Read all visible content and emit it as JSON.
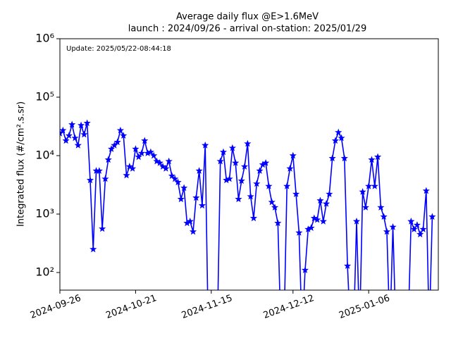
{
  "chart_data": {
    "type": "line",
    "title": "Average daily flux @E>1.6MeV",
    "subtitle": "launch : 2024/09/26 - arrival on-station: 2025/01/29",
    "annotation": "Update: 2025/05/22-08:44:18",
    "y_label": "Integrated flux (#/cm².s.sr)",
    "log_y": true,
    "x": [
      "2024-09-26",
      "2024-09-27",
      "2024-09-28",
      "2024-09-29",
      "2024-09-30",
      "2024-10-01",
      "2024-10-02",
      "2024-10-03",
      "2024-10-04",
      "2024-10-05",
      "2024-10-06",
      "2024-10-07",
      "2024-10-08",
      "2024-10-09",
      "2024-10-10",
      "2024-10-11",
      "2024-10-12",
      "2024-10-13",
      "2024-10-14",
      "2024-10-15",
      "2024-10-16",
      "2024-10-17",
      "2024-10-18",
      "2024-10-19",
      "2024-10-20",
      "2024-10-21",
      "2024-10-22",
      "2024-10-23",
      "2024-10-24",
      "2024-10-25",
      "2024-10-26",
      "2024-10-27",
      "2024-10-28",
      "2024-10-29",
      "2024-10-30",
      "2024-10-31",
      "2024-11-01",
      "2024-11-02",
      "2024-11-03",
      "2024-11-04",
      "2024-11-05",
      "2024-11-06",
      "2024-11-07",
      "2024-11-08",
      "2024-11-09",
      "2024-11-10",
      "2024-11-11",
      "2024-11-12",
      "2024-11-13",
      "2024-11-14",
      "2024-11-15",
      "2024-11-16",
      "2024-11-17",
      "2024-11-18",
      "2024-11-19",
      "2024-11-20",
      "2024-11-21",
      "2024-11-22",
      "2024-11-23",
      "2024-11-24",
      "2024-11-25",
      "2024-11-26",
      "2024-11-27",
      "2024-11-28",
      "2024-11-29",
      "2024-11-30",
      "2024-12-01",
      "2024-12-02",
      "2024-12-03",
      "2024-12-04",
      "2024-12-05",
      "2024-12-06",
      "2024-12-07",
      "2024-12-08",
      "2024-12-09",
      "2024-12-10",
      "2024-12-11",
      "2024-12-12",
      "2024-12-13",
      "2024-12-14",
      "2024-12-15",
      "2024-12-16",
      "2024-12-17",
      "2024-12-18",
      "2024-12-19",
      "2024-12-20",
      "2024-12-21",
      "2024-12-22",
      "2024-12-23",
      "2024-12-24",
      "2024-12-25",
      "2024-12-26",
      "2024-12-27",
      "2024-12-28",
      "2024-12-29",
      "2024-12-30",
      "2024-12-31",
      "2025-01-01",
      "2025-01-02",
      "2025-01-03",
      "2025-01-04",
      "2025-01-05",
      "2025-01-06",
      "2025-01-07",
      "2025-01-08",
      "2025-01-09",
      "2025-01-10",
      "2025-01-11",
      "2025-01-12",
      "2025-01-13",
      "2025-01-14",
      "2025-01-15",
      "2025-01-16",
      "2025-01-17",
      "2025-01-18",
      "2025-01-19",
      "2025-01-20",
      "2025-01-21",
      "2025-01-22",
      "2025-01-23",
      "2025-01-24",
      "2025-01-25",
      "2025-01-26",
      "2025-01-27"
    ],
    "series": [
      {
        "name": "flux",
        "color": "#0000ff",
        "values": [
          24000,
          27000,
          18000,
          22000,
          34000,
          20000,
          15000,
          33000,
          23000,
          36000,
          3800,
          250,
          5500,
          5500,
          560,
          4000,
          8500,
          13000,
          15000,
          17000,
          27000,
          22000,
          4600,
          6500,
          6000,
          13000,
          9500,
          11000,
          18000,
          11000,
          11500,
          10000,
          8000,
          7500,
          6500,
          6000,
          8000,
          4500,
          4000,
          3500,
          1800,
          2800,
          700,
          750,
          500,
          1900,
          5500,
          1400,
          15000,
          0,
          0,
          0,
          0,
          8000,
          11500,
          3800,
          4000,
          13500,
          7500,
          1800,
          3700,
          6500,
          16000,
          2000,
          850,
          3300,
          5500,
          7000,
          7500,
          3000,
          1600,
          1300,
          700,
          0,
          0,
          3000,
          6000,
          10000,
          2200,
          480,
          0,
          110,
          550,
          580,
          850,
          800,
          1700,
          750,
          1500,
          2200,
          9000,
          18000,
          25000,
          20000,
          9000,
          130,
          0,
          0,
          750,
          0,
          2400,
          1300,
          3000,
          8500,
          3000,
          9500,
          1300,
          900,
          500,
          0,
          600,
          0,
          0,
          0,
          0,
          0,
          750,
          550,
          650,
          450,
          550,
          2500,
          0,
          900
        ]
      }
    ],
    "xlim": [
      "2024-09-26",
      "2025-01-29"
    ],
    "xticks": [
      "2024-09-26",
      "2024-10-21",
      "2024-11-15",
      "2024-12-12",
      "2025-01-06"
    ],
    "ylim": [
      50,
      1000000
    ],
    "yticks": [
      {
        "value": 100,
        "label": "10²"
      },
      {
        "value": 1000,
        "label": "10³"
      },
      {
        "value": 10000,
        "label": "10⁴"
      },
      {
        "value": 100000,
        "label": "10⁵"
      },
      {
        "value": 1000000,
        "label": "10⁶"
      }
    ]
  }
}
